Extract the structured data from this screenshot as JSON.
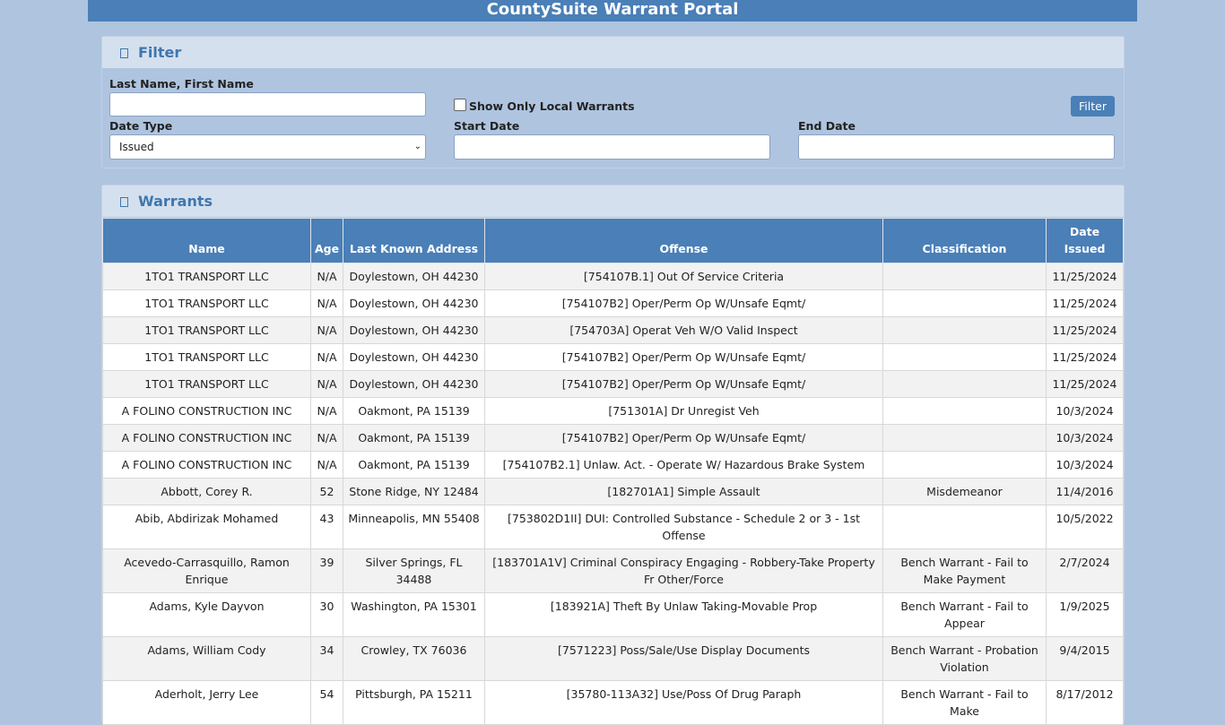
{
  "header": {
    "title": "CountySuite Warrant Portal"
  },
  "filter": {
    "heading": "Filter",
    "name_label": "Last Name, First Name",
    "local_label": "Show Only Local Warrants",
    "button": "Filter",
    "date_type_label": "Date Type",
    "date_type_value": "Issued",
    "start_label": "Start Date",
    "end_label": "End Date"
  },
  "warrants": {
    "heading": "Warrants",
    "columns": [
      "Name",
      "Age",
      "Last Known Address",
      "Offense",
      "Classification",
      "Date Issued"
    ],
    "rows": [
      [
        "1TO1 TRANSPORT LLC",
        "N/A",
        "Doylestown, OH 44230",
        "[754107B.1] Out Of Service Criteria",
        null,
        "11/25/2024"
      ],
      [
        "1TO1 TRANSPORT LLC",
        "N/A",
        "Doylestown, OH 44230",
        "[754107B2] Oper/Perm Op W/Unsafe Eqmt/",
        null,
        "11/25/2024"
      ],
      [
        "1TO1 TRANSPORT LLC",
        "N/A",
        "Doylestown, OH 44230",
        "[754703A] Operat Veh W/O Valid Inspect",
        null,
        "11/25/2024"
      ],
      [
        "1TO1 TRANSPORT LLC",
        "N/A",
        "Doylestown, OH 44230",
        "[754107B2] Oper/Perm Op W/Unsafe Eqmt/",
        null,
        "11/25/2024"
      ],
      [
        "1TO1 TRANSPORT LLC",
        "N/A",
        "Doylestown, OH 44230",
        "[754107B2] Oper/Perm Op W/Unsafe Eqmt/",
        null,
        "11/25/2024"
      ],
      [
        "A FOLINO CONSTRUCTION INC",
        "N/A",
        "Oakmont, PA 15139",
        "[751301A] Dr Unregist Veh",
        null,
        "10/3/2024"
      ],
      [
        "A FOLINO CONSTRUCTION INC",
        "N/A",
        "Oakmont, PA 15139",
        "[754107B2] Oper/Perm Op W/Unsafe Eqmt/",
        null,
        "10/3/2024"
      ],
      [
        "A FOLINO CONSTRUCTION INC",
        "N/A",
        "Oakmont, PA 15139",
        "[754107B2.1] Unlaw. Act. - Operate W/ Hazardous Brake System",
        null,
        "10/3/2024"
      ],
      [
        "Abbott, Corey R.",
        "52",
        "Stone Ridge, NY 12484",
        "[182701A1] Simple Assault",
        "Misdemeanor",
        "11/4/2016"
      ],
      [
        "Abib, Abdirizak Mohamed",
        "43",
        "Minneapolis, MN 55408",
        "[753802D1II] DUI: Controlled Substance - Schedule 2 or 3 - 1st Offense",
        null,
        "10/5/2022"
      ],
      [
        "Acevedo-Carrasquillo, Ramon Enrique",
        "39",
        "Silver Springs, FL 34488",
        "[183701A1V] Criminal Conspiracy Engaging - Robbery-Take Property Fr Other/Force",
        "Bench Warrant - Fail to Make Payment",
        "2/7/2024"
      ],
      [
        "Adams, Kyle Dayvon",
        "30",
        "Washington, PA 15301",
        "[183921A] Theft By Unlaw Taking-Movable Prop",
        "Bench Warrant - Fail to Appear",
        "1/9/2025"
      ],
      [
        "Adams, William Cody",
        "34",
        "Crowley, TX 76036",
        "[7571223] Poss/Sale/Use Display Documents",
        "Bench Warrant - Probation Violation",
        "9/4/2015"
      ],
      [
        "Aderholt, Jerry Lee",
        "54",
        "Pittsburgh, PA 15211",
        "[35780-113A32] Use/Poss Of Drug Paraph",
        "Bench Warrant - Fail to Make",
        "8/17/2012"
      ]
    ]
  }
}
